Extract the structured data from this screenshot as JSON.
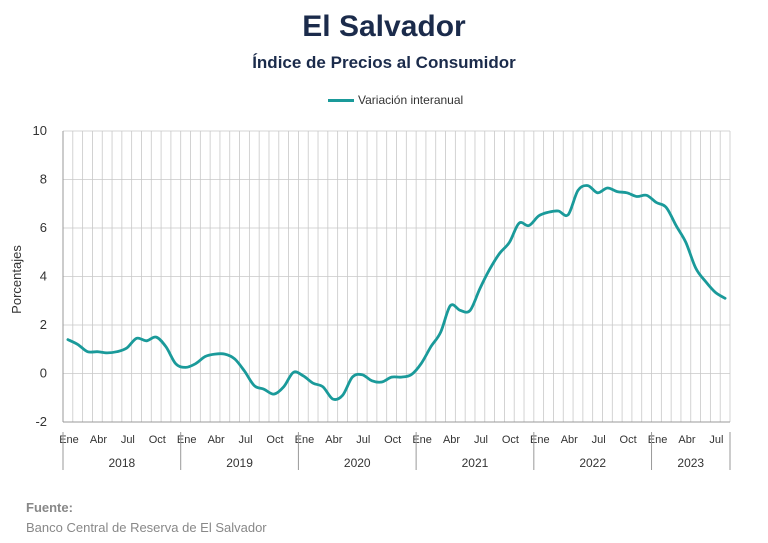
{
  "title": "El Salvador",
  "subtitle": "Índice de Precios al Consumidor",
  "source": {
    "label": "Fuente:",
    "text": "Banco Central de Reserva de El Salvador"
  },
  "colors": {
    "series": "#1a9a9a",
    "grid": "#c8c8c8",
    "title": "#1b2b4b"
  },
  "chart_data": {
    "type": "line",
    "title": "El Salvador",
    "subtitle": "Índice de Precios al Consumidor",
    "ylabel": "Porcentajes",
    "xlabel": "",
    "ylim": [
      -2,
      10
    ],
    "yticks": [
      -2,
      0,
      2,
      4,
      6,
      8,
      10
    ],
    "grid": true,
    "legend": "top-center",
    "month_tick_labels": [
      "Ene",
      "Abr",
      "Jul",
      "Oct",
      "Ene",
      "Abr",
      "Jul",
      "Oct",
      "Ene",
      "Abr",
      "Jul",
      "Oct",
      "Ene",
      "Abr",
      "Jul",
      "Oct",
      "Ene",
      "Abr",
      "Jul",
      "Oct",
      "Ene",
      "Abr",
      "Jul"
    ],
    "years": [
      "2018",
      "2019",
      "2020",
      "2021",
      "2022",
      "2023"
    ],
    "series": [
      {
        "name": "Variación interanual",
        "x": [
          "2018-01",
          "2018-02",
          "2018-03",
          "2018-04",
          "2018-05",
          "2018-06",
          "2018-07",
          "2018-08",
          "2018-09",
          "2018-10",
          "2018-11",
          "2018-12",
          "2019-01",
          "2019-02",
          "2019-03",
          "2019-04",
          "2019-05",
          "2019-06",
          "2019-07",
          "2019-08",
          "2019-09",
          "2019-10",
          "2019-11",
          "2019-12",
          "2020-01",
          "2020-02",
          "2020-03",
          "2020-04",
          "2020-05",
          "2020-06",
          "2020-07",
          "2020-08",
          "2020-09",
          "2020-10",
          "2020-11",
          "2020-12",
          "2021-01",
          "2021-02",
          "2021-03",
          "2021-04",
          "2021-05",
          "2021-06",
          "2021-07",
          "2021-08",
          "2021-09",
          "2021-10",
          "2021-11",
          "2021-12",
          "2022-01",
          "2022-02",
          "2022-03",
          "2022-04",
          "2022-05",
          "2022-06",
          "2022-07",
          "2022-08",
          "2022-09",
          "2022-10",
          "2022-11",
          "2022-12",
          "2023-01",
          "2023-02",
          "2023-03",
          "2023-04",
          "2023-05",
          "2023-06",
          "2023-07",
          "2023-08"
        ],
        "values": [
          1.4,
          1.2,
          0.9,
          0.9,
          0.85,
          0.9,
          1.05,
          1.45,
          1.35,
          1.5,
          1.1,
          0.4,
          0.25,
          0.4,
          0.7,
          0.8,
          0.8,
          0.6,
          0.1,
          -0.5,
          -0.65,
          -0.85,
          -0.55,
          0.05,
          -0.1,
          -0.4,
          -0.55,
          -1.05,
          -0.9,
          -0.15,
          -0.05,
          -0.3,
          -0.35,
          -0.15,
          -0.15,
          -0.05,
          0.4,
          1.1,
          1.7,
          2.8,
          2.6,
          2.6,
          3.5,
          4.3,
          4.95,
          5.4,
          6.2,
          6.1,
          6.5,
          6.65,
          6.7,
          6.55,
          7.55,
          7.75,
          7.45,
          7.65,
          7.5,
          7.45,
          7.3,
          7.35,
          7.05,
          6.85,
          6.1,
          5.4,
          4.35,
          3.8,
          3.35,
          3.1
        ]
      }
    ]
  }
}
